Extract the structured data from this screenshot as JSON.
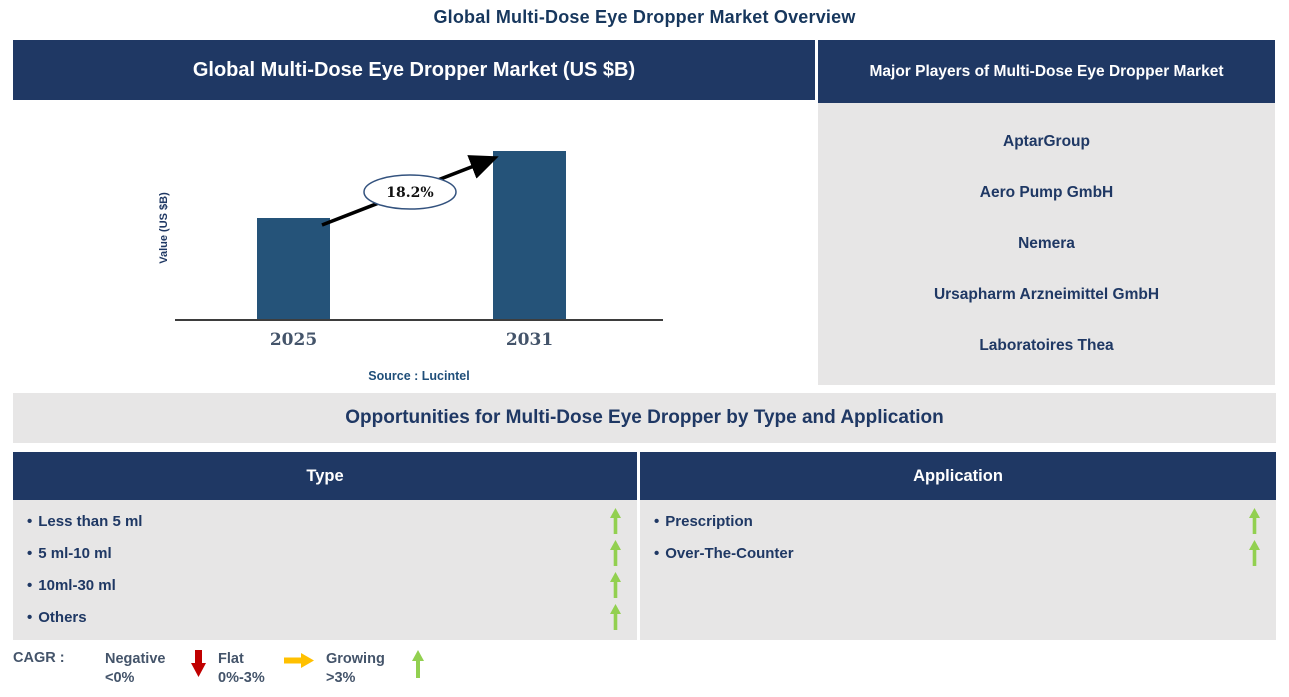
{
  "page_title": "Global Multi-Dose Eye Dropper Market Overview",
  "market_chart": {
    "header": "Global Multi-Dose Eye Dropper Market (US $B)"
  },
  "players": {
    "header": "Major Players of Multi-Dose Eye Dropper Market",
    "items": [
      "AptarGroup",
      "Aero Pump GmbH",
      "Nemera",
      "Ursapharm Arzneimittel GmbH",
      "Laboratoires Thea"
    ]
  },
  "opportunities": {
    "header": "Opportunities for Multi-Dose Eye Dropper by Type and Application",
    "bullet": "•",
    "type": {
      "header": "Type",
      "items": [
        {
          "label": "Less than 5 ml",
          "trend": "growing"
        },
        {
          "label": "5 ml-10 ml",
          "trend": "growing"
        },
        {
          "label": "10ml-30 ml",
          "trend": "growing"
        },
        {
          "label": "Others",
          "trend": "growing"
        }
      ]
    },
    "application": {
      "header": "Application",
      "items": [
        {
          "label": "Prescription",
          "trend": "growing"
        },
        {
          "label": "Over-The-Counter",
          "trend": "growing"
        }
      ]
    }
  },
  "legend": {
    "title": "CAGR :",
    "entries": [
      {
        "name": "Negative",
        "range": "<0%",
        "icon": "down-arrow-icon",
        "color": "#C00000"
      },
      {
        "name": "Flat",
        "range": "0%-3%",
        "icon": "right-arrow-icon",
        "color": "#FFC000"
      },
      {
        "name": "Growing",
        "range": ">3%",
        "icon": "up-arrow-icon",
        "color": "#92D050"
      }
    ]
  },
  "chart_data": {
    "type": "bar",
    "title": "Global Multi-Dose Eye Dropper Market (US $B)",
    "categories": [
      "2025",
      "2031"
    ],
    "relative_values": [
      0.6,
      1.0
    ],
    "values_note": "y-axis has no numeric ticks; bar heights are relative, 2031 is about 1.66x the 2025 bar",
    "growth_label": "18.2%",
    "ylabel": "Value (US $B)",
    "xlabel": "",
    "source": "Source : Lucintel",
    "grid": false,
    "legend_position": "none",
    "bar_color": "#255379"
  },
  "colors": {
    "navy_header": "#1F3864",
    "bar_blue": "#255379",
    "panel_gray": "#E7E6E6",
    "growing_green": "#92D050",
    "negative_red": "#C00000",
    "flat_yellow": "#FFC000",
    "source_blue": "#1F4E79",
    "axis_label_gray": "#44546A"
  }
}
